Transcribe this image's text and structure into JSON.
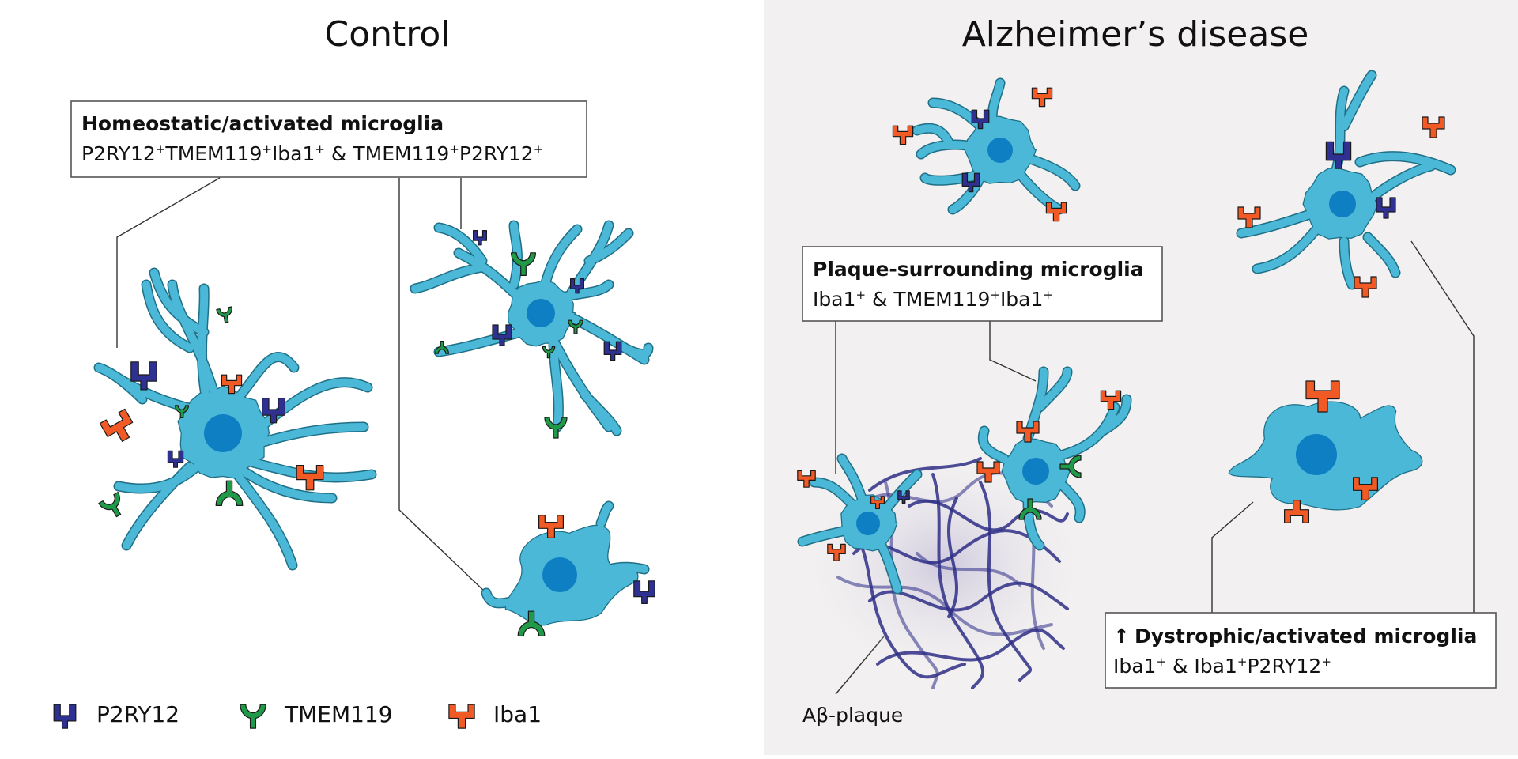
{
  "panels": {
    "control": {
      "title": "Control"
    },
    "ad": {
      "title": "Alzheimer’s disease"
    }
  },
  "labels": {
    "homeostatic": {
      "heading": "Homeostatic/activated microglia",
      "markers": [
        {
          "t": "P2RY12"
        },
        {
          "sup": "+"
        },
        {
          "t": "TMEM119"
        },
        {
          "sup": "+"
        },
        {
          "t": "Iba1"
        },
        {
          "sup": "+"
        },
        {
          "t": " & TMEM119"
        },
        {
          "sup": "+"
        },
        {
          "t": "P2RY12"
        },
        {
          "sup": "+"
        }
      ]
    },
    "plaque_surrounding": {
      "heading": "Plaque-surrounding microglia",
      "markers": [
        {
          "t": "Iba1"
        },
        {
          "sup": "+"
        },
        {
          "t": " & TMEM119"
        },
        {
          "sup": "+"
        },
        {
          "t": "Iba1"
        },
        {
          "sup": "+"
        }
      ]
    },
    "dystrophic": {
      "arrow": "↑",
      "heading": "Dystrophic/activated microglia",
      "markers": [
        {
          "t": "Iba1"
        },
        {
          "sup": "+"
        },
        {
          "t": " & Iba1"
        },
        {
          "sup": "+"
        },
        {
          "t": "P2RY12"
        },
        {
          "sup": "+"
        }
      ]
    },
    "plaque": "Aβ-plaque"
  },
  "legend": [
    {
      "name": "P2RY12",
      "color": "#2e3192"
    },
    {
      "name": "TMEM119",
      "color": "#1f9a48"
    },
    {
      "name": "Iba1",
      "color": "#f15a24"
    }
  ],
  "colors": {
    "cell_body": "#4ab8d6",
    "cell_outline": "#1f6f86",
    "nucleus": "#0f7fc4",
    "plaque": "#2e2e86",
    "panel_ad_bg": "#f2f0f0"
  }
}
